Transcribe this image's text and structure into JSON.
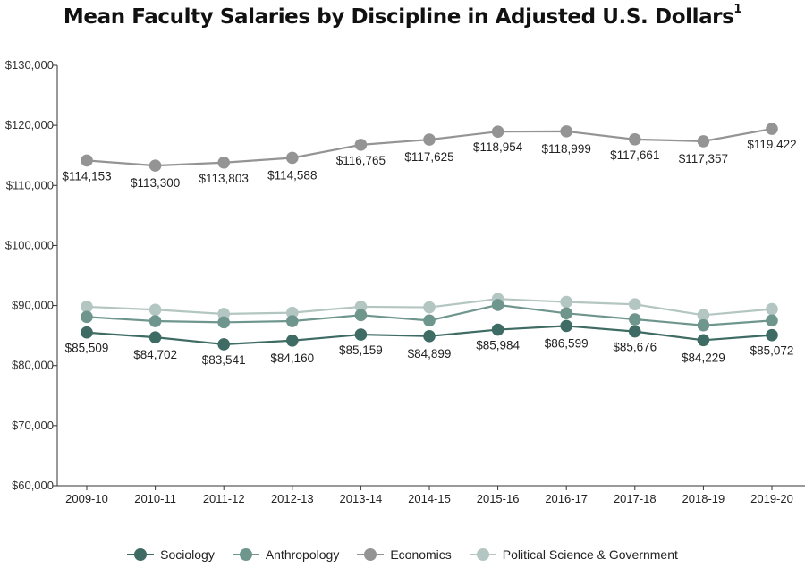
{
  "title": "Mean Faculty Salaries by Discipline in Adjusted U.S. Dollars",
  "title_footnote": "1",
  "chart_data": {
    "type": "line",
    "title": "Mean Faculty Salaries by Discipline in Adjusted U.S. Dollars",
    "xlabel": "",
    "ylabel": "",
    "categories": [
      "2009-10",
      "2010-11",
      "2011-12",
      "2012-13",
      "2013-14",
      "2014-15",
      "2015-16",
      "2016-17",
      "2017-18",
      "2018-19",
      "2019-20"
    ],
    "ylim": [
      60000,
      130000
    ],
    "yticks": [
      60000,
      70000,
      80000,
      90000,
      100000,
      110000,
      120000,
      130000
    ],
    "ytick_labels": [
      "$60,000",
      "$70,000",
      "$80,000",
      "$90,000",
      "$100,000",
      "$110,000",
      "$120,000",
      "$130,000"
    ],
    "grid": false,
    "legend_position": "bottom",
    "series": [
      {
        "name": "Sociology",
        "color": "#3e6b63",
        "values": [
          85509,
          84702,
          83541,
          84160,
          85159,
          84899,
          85984,
          86599,
          85676,
          84229,
          85072
        ],
        "labels": [
          "$85,509",
          "$84,702",
          "$83,541",
          "$84,160",
          "$85,159",
          "$84,899",
          "$85,984",
          "$86,599",
          "$85,676",
          "$84,229",
          "$85,072"
        ],
        "label_position": "below"
      },
      {
        "name": "Anthropology",
        "color": "#6f968d",
        "values": [
          88100,
          87400,
          87200,
          87400,
          88400,
          87500,
          90100,
          88700,
          87700,
          86700,
          87500
        ]
      },
      {
        "name": "Economics",
        "color": "#949494",
        "values": [
          114153,
          113300,
          113803,
          114588,
          116765,
          117625,
          118954,
          118999,
          117661,
          117357,
          119422
        ],
        "labels": [
          "$114,153",
          "$113,300",
          "$113,803",
          "$114,588",
          "$116,765",
          "$117,625",
          "$118,954",
          "$118,999",
          "$117,661",
          "$117,357",
          "$119,422"
        ],
        "label_position": "below"
      },
      {
        "name": "Political Science & Government",
        "color": "#b4c6c1",
        "values": [
          89800,
          89300,
          88600,
          88800,
          89800,
          89700,
          91100,
          90600,
          90200,
          88400,
          89400
        ]
      }
    ]
  }
}
